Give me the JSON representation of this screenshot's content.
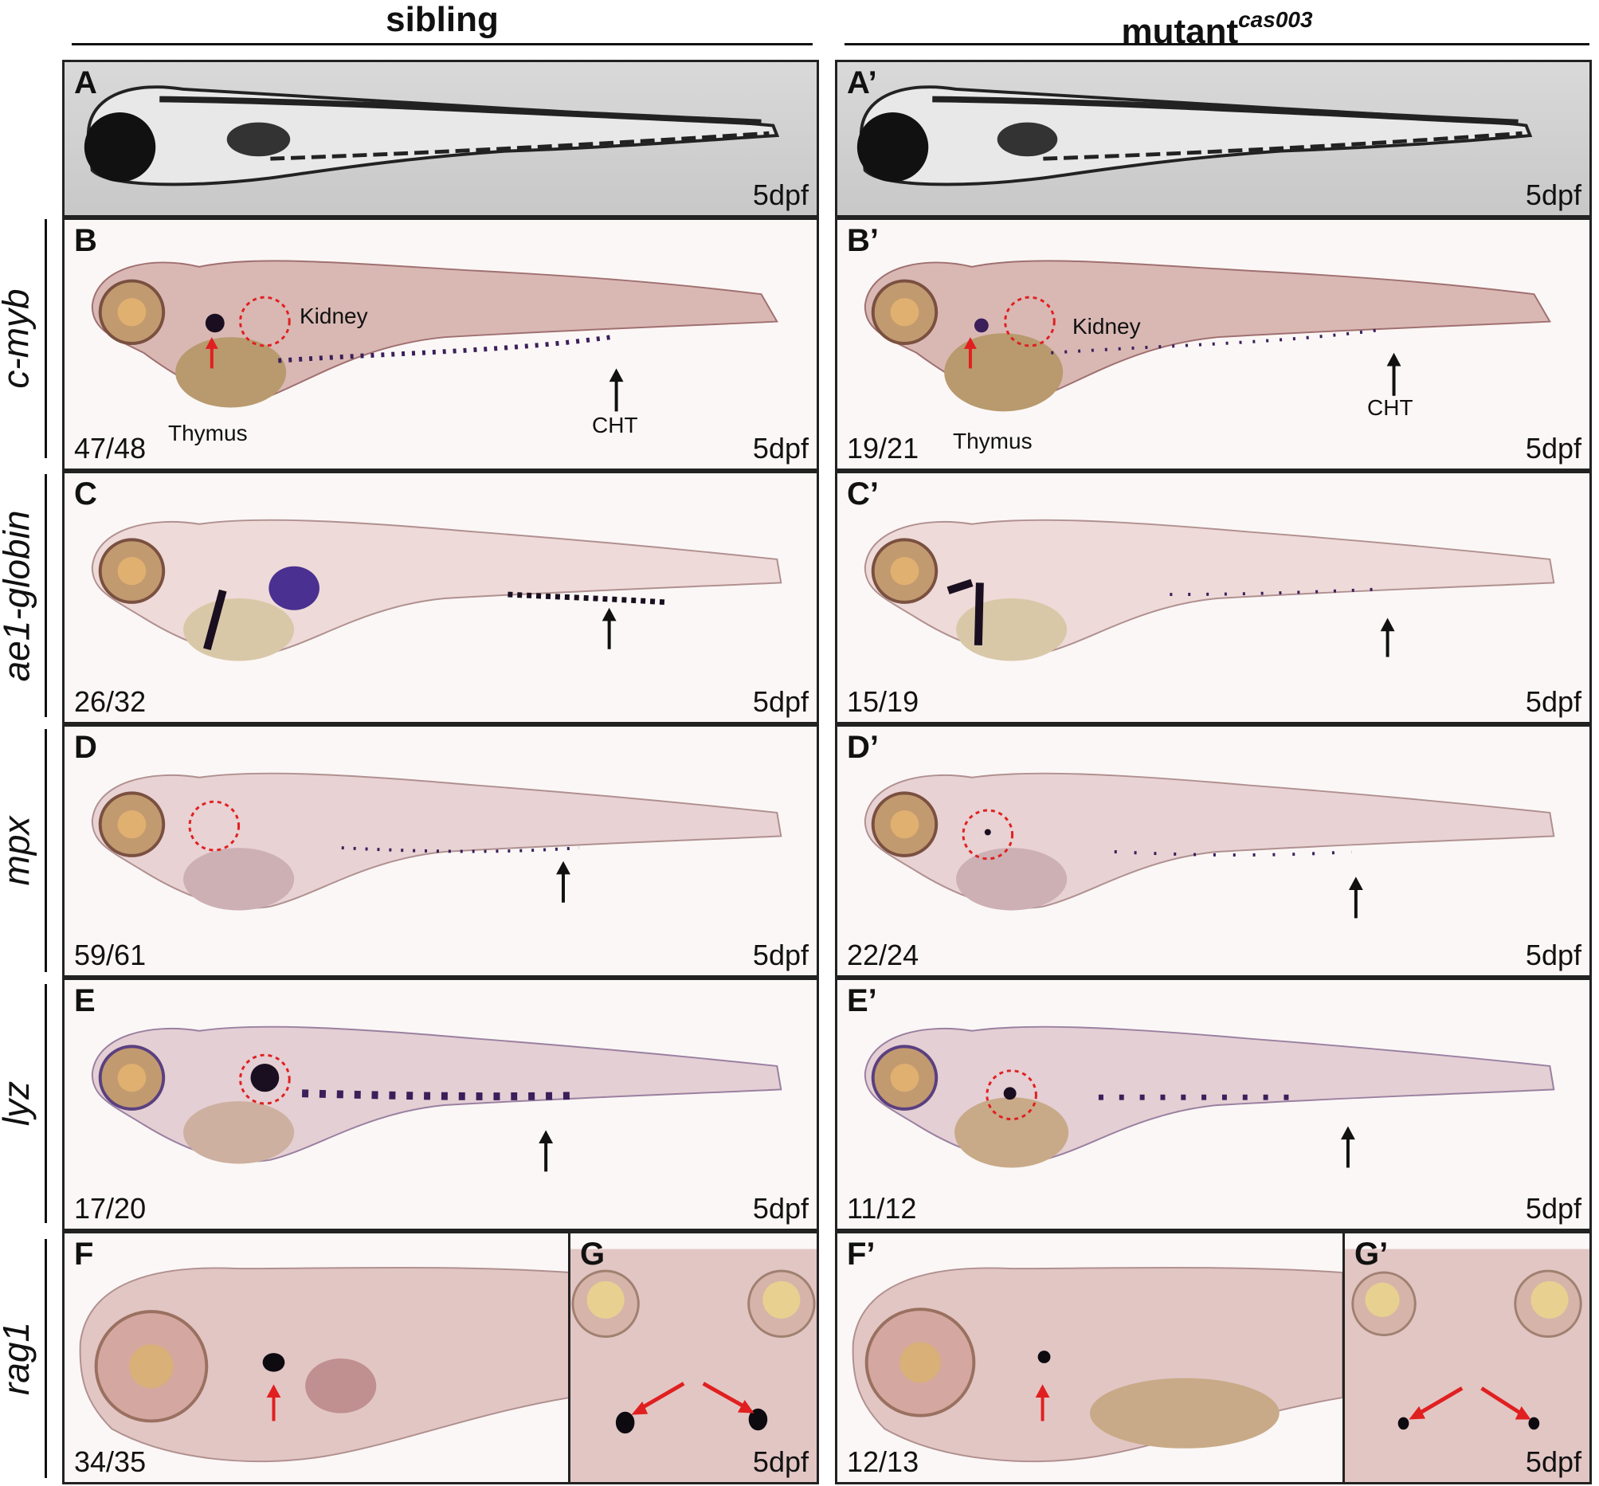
{
  "headers": {
    "sibling": "sibling",
    "mutant": "mutant",
    "mutant_sup": "cas003"
  },
  "rows": {
    "c_myb": "c-myb",
    "ae1": "ae1-globin",
    "mpx": "mpx",
    "lyz": "lyz",
    "rag1": "rag1"
  },
  "panels": {
    "A": {
      "letter": "A",
      "stage": "5dpf"
    },
    "A2": {
      "letter": "A’",
      "stage": "5dpf"
    },
    "B": {
      "letter": "B",
      "count": "47/48",
      "stage": "5dpf",
      "thymus": "Thymus",
      "kidney": "Kidney",
      "cht": "CHT"
    },
    "B2": {
      "letter": "B’",
      "count": "19/21",
      "stage": "5dpf",
      "thymus": "Thymus",
      "kidney": "Kidney",
      "cht": "CHT"
    },
    "C": {
      "letter": "C",
      "count": "26/32",
      "stage": "5dpf"
    },
    "C2": {
      "letter": "C’",
      "count": "15/19",
      "stage": "5dpf"
    },
    "D": {
      "letter": "D",
      "count": "59/61",
      "stage": "5dpf"
    },
    "D2": {
      "letter": "D’",
      "count": "22/24",
      "stage": "5dpf"
    },
    "E": {
      "letter": "E",
      "count": "17/20",
      "stage": "5dpf"
    },
    "E2": {
      "letter": "E’",
      "count": "11/12",
      "stage": "5dpf"
    },
    "F": {
      "letter": "F",
      "count": "34/35"
    },
    "G": {
      "letter": "G",
      "stage": "5dpf"
    },
    "F2": {
      "letter": "F’",
      "count": "12/13"
    },
    "G2": {
      "letter": "G’",
      "stage": "5dpf"
    }
  },
  "colors": {
    "stain": "#3a1f5a",
    "tissue": "#d9b8b4",
    "yolk": "#b89a6e",
    "eye": "#c29a70",
    "red_arrow": "#e02020",
    "dashed_circle": "#e02020"
  }
}
